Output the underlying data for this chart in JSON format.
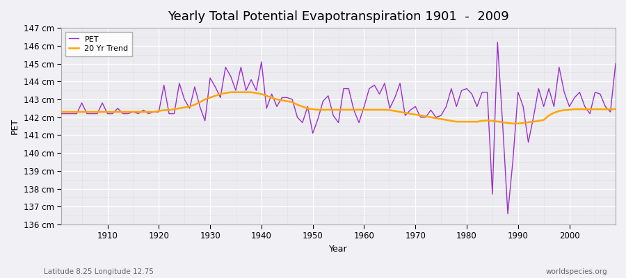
{
  "title": "Yearly Total Potential Evapotranspiration 1901  -  2009",
  "xlabel": "Year",
  "ylabel": "PET",
  "subtitle_left": "Latitude 8.25 Longitude 12.75",
  "subtitle_right": "worldspecies.org",
  "years": [
    1901,
    1902,
    1903,
    1904,
    1905,
    1906,
    1907,
    1908,
    1909,
    1910,
    1911,
    1912,
    1913,
    1914,
    1915,
    1916,
    1917,
    1918,
    1919,
    1920,
    1921,
    1922,
    1923,
    1924,
    1925,
    1926,
    1927,
    1928,
    1929,
    1930,
    1931,
    1932,
    1933,
    1934,
    1935,
    1936,
    1937,
    1938,
    1939,
    1940,
    1941,
    1942,
    1943,
    1944,
    1945,
    1946,
    1947,
    1948,
    1949,
    1950,
    1951,
    1952,
    1953,
    1954,
    1955,
    1956,
    1957,
    1958,
    1959,
    1960,
    1961,
    1962,
    1963,
    1964,
    1965,
    1966,
    1967,
    1968,
    1969,
    1970,
    1971,
    1972,
    1973,
    1974,
    1975,
    1976,
    1977,
    1978,
    1979,
    1980,
    1981,
    1982,
    1983,
    1984,
    1985,
    1986,
    1987,
    1988,
    1989,
    1990,
    1991,
    1992,
    1993,
    1994,
    1995,
    1996,
    1997,
    1998,
    1999,
    2000,
    2001,
    2002,
    2003,
    2004,
    2005,
    2006,
    2007,
    2008,
    2009
  ],
  "pet": [
    142.2,
    142.2,
    142.2,
    142.2,
    142.8,
    142.2,
    142.2,
    142.2,
    142.8,
    142.2,
    142.2,
    142.5,
    142.2,
    142.2,
    142.3,
    142.2,
    142.4,
    142.2,
    142.3,
    142.3,
    143.8,
    142.2,
    142.2,
    143.9,
    143.0,
    142.5,
    143.7,
    142.6,
    141.8,
    144.2,
    143.7,
    143.1,
    144.8,
    144.3,
    143.5,
    144.8,
    143.5,
    144.1,
    143.5,
    145.1,
    142.5,
    143.3,
    142.6,
    143.1,
    143.1,
    143.0,
    142.0,
    141.7,
    142.6,
    141.1,
    141.9,
    142.9,
    143.2,
    142.1,
    141.7,
    143.6,
    143.6,
    142.4,
    141.7,
    142.6,
    143.6,
    143.8,
    143.3,
    143.9,
    142.5,
    143.1,
    143.9,
    142.1,
    142.4,
    142.6,
    142.0,
    142.0,
    142.4,
    142.0,
    142.1,
    142.6,
    143.6,
    142.6,
    143.5,
    143.6,
    143.3,
    142.6,
    143.4,
    143.4,
    137.7,
    146.2,
    141.6,
    136.6,
    139.6,
    143.4,
    142.6,
    140.6,
    142.0,
    143.6,
    142.6,
    143.6,
    142.6,
    144.8,
    143.4,
    142.6,
    143.1,
    143.4,
    142.6,
    142.2,
    143.4,
    143.3,
    142.6,
    142.3,
    145.0
  ],
  "trend": [
    142.3,
    142.3,
    142.3,
    142.3,
    142.3,
    142.3,
    142.3,
    142.3,
    142.3,
    142.3,
    142.3,
    142.3,
    142.3,
    142.3,
    142.3,
    142.3,
    142.3,
    142.3,
    142.3,
    142.35,
    142.4,
    142.4,
    142.45,
    142.5,
    142.55,
    142.6,
    142.7,
    142.85,
    143.0,
    143.1,
    143.2,
    143.3,
    143.35,
    143.4,
    143.4,
    143.4,
    143.4,
    143.4,
    143.35,
    143.3,
    143.2,
    143.1,
    143.0,
    142.95,
    142.9,
    142.85,
    142.7,
    142.6,
    142.5,
    142.45,
    142.42,
    142.42,
    142.42,
    142.42,
    142.42,
    142.42,
    142.42,
    142.42,
    142.42,
    142.42,
    142.42,
    142.42,
    142.42,
    142.42,
    142.4,
    142.35,
    142.3,
    142.25,
    142.2,
    142.15,
    142.1,
    142.05,
    142.0,
    141.95,
    141.9,
    141.85,
    141.8,
    141.75,
    141.75,
    141.75,
    141.75,
    141.75,
    141.8,
    141.82,
    141.8,
    141.76,
    141.72,
    141.68,
    141.65,
    141.65,
    141.68,
    141.72,
    141.75,
    141.8,
    141.85,
    142.1,
    142.25,
    142.35,
    142.4,
    142.42,
    142.45,
    142.45,
    142.45,
    142.45,
    142.45,
    142.45,
    142.45,
    142.45,
    142.45
  ],
  "pet_color": "#9B30CC",
  "trend_color": "#FFA500",
  "bg_color": "#F0F0F5",
  "plot_bg_color": "#EBEBF0",
  "grid_major_color": "#FFFFFF",
  "grid_minor_color": "#D8D8E0",
  "ylim": [
    136,
    147
  ],
  "xlim": [
    1901,
    2009
  ],
  "ytick_step": 1,
  "xtick_positions": [
    1910,
    1920,
    1930,
    1940,
    1950,
    1960,
    1970,
    1980,
    1990,
    2000
  ],
  "title_fontsize": 13,
  "axis_label_fontsize": 9,
  "tick_fontsize": 8.5
}
